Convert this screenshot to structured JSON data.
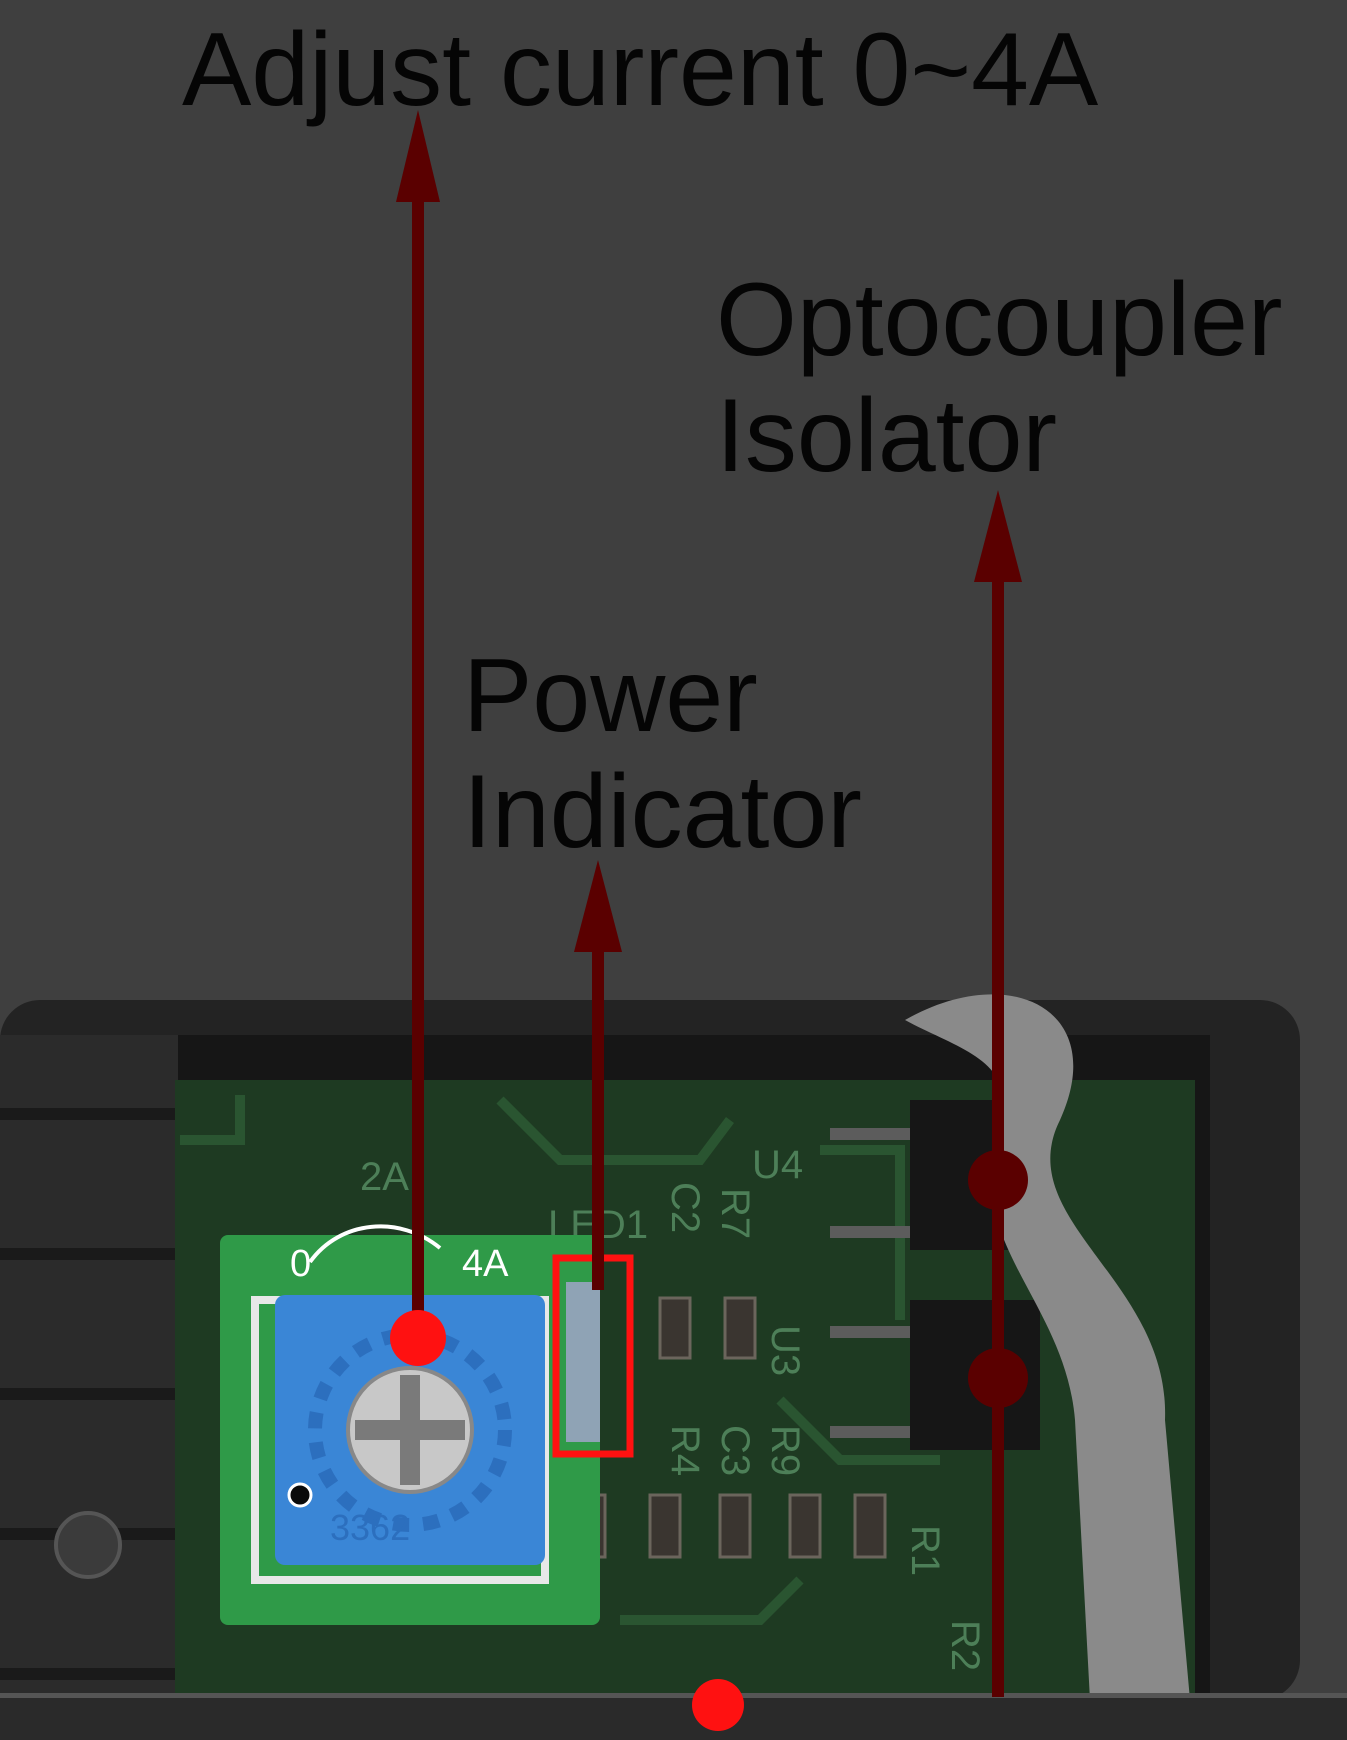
{
  "labels": {
    "adjust": "Adjust current 0~4A",
    "opto_line1": "Optocoupler",
    "opto_line2": "Isolator",
    "power_line1": "Power",
    "power_line2": "Indicator"
  },
  "pcb_silkscreen": {
    "pot_min": "0",
    "pot_mid": "2A",
    "pot_max": "4A",
    "pot_model": "3362",
    "led": "LED1",
    "u4": "U4",
    "u3": "U3",
    "c2": "C2",
    "c3": "C3",
    "r1": "R1",
    "r2": "R2",
    "r4": "R4",
    "r7": "R7",
    "r9": "R9"
  },
  "colors": {
    "background": "#3f3f3f",
    "arrow": "#5a0000",
    "marker": "#ff1111",
    "pcb_dim": "#1e3a22",
    "pcb_bright": "#2f9a48",
    "pot_blue": "#3a86d6",
    "text": "#050505"
  }
}
